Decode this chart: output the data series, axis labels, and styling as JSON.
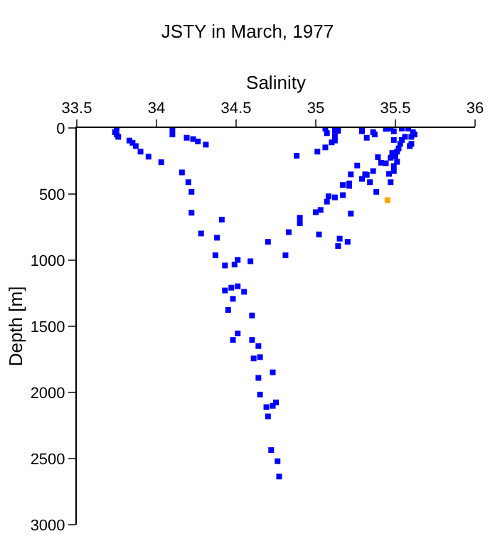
{
  "chart_data": {
    "type": "scatter",
    "title": "JSTY in March, 1977",
    "xlabel": "Salinity",
    "ylabel": "Depth [m]",
    "xlim": [
      33.5,
      36
    ],
    "xticks": [
      33.5,
      34,
      34.5,
      35,
      35.5,
      36
    ],
    "ylim": [
      3000,
      0
    ],
    "yticks": [
      0,
      500,
      1000,
      1500,
      2000,
      2500,
      3000
    ],
    "legend": false,
    "marker": "square",
    "series": [
      {
        "color": "#0000ff",
        "x": [
          33.75,
          33.74,
          33.75,
          33.76,
          34.1,
          34.1,
          34.19,
          34.23,
          34.26,
          34.31,
          33.83,
          33.85,
          33.87,
          33.9,
          33.95,
          34.03,
          34.16,
          34.2,
          34.22,
          34.22,
          34.28,
          34.41,
          34.38,
          34.37,
          34.43,
          34.49,
          34.51,
          34.59,
          34.43,
          34.47,
          34.51,
          34.55,
          34.48,
          34.45,
          34.6,
          34.51,
          35.26,
          35.22,
          35.21,
          35.07,
          35.15,
          35.2,
          35.14,
          35.06,
          35.07,
          35.12,
          35.14,
          35.12,
          35.12,
          35.1,
          35.06,
          35.01,
          34.88,
          35.29,
          35.29,
          35.32,
          35.36,
          35.37,
          35.44,
          35.47,
          35.49,
          35.54,
          35.58,
          35.61,
          35.62,
          35.56,
          35.6,
          35.54,
          35.53,
          35.6,
          35.59,
          35.49,
          35.52,
          35.51,
          35.48,
          35.5,
          35.47,
          35.39,
          35.41,
          35.44,
          35.51,
          35.49,
          35.49,
          35.46,
          35.36,
          35.31,
          35.32,
          35.29,
          35.34,
          35.47,
          35.38,
          35.17,
          35.21,
          35.17,
          35.12,
          35.08,
          35.03,
          35.0,
          34.9,
          34.9,
          35.22,
          34.83,
          35.02,
          34.7,
          34.81,
          34.48,
          34.6,
          34.64,
          34.61,
          34.65,
          34.73,
          34.64,
          34.65,
          34.69,
          34.73,
          34.75,
          34.7,
          34.72,
          34.76,
          34.77
        ],
        "values": [
          4,
          32,
          49,
          67,
          7,
          49,
          74,
          84,
          102,
          126,
          95,
          112,
          137,
          179,
          217,
          259,
          336,
          410,
          483,
          641,
          798,
          693,
          830,
          963,
          1040,
          1033,
          998,
          1008,
          1229,
          1208,
          1197,
          1239,
          1292,
          1376,
          1418,
          1554,
          284,
          351,
          420,
          557,
          837,
          861,
          893,
          4,
          39,
          18,
          21,
          60,
          95,
          109,
          147,
          179,
          210,
          7,
          25,
          74,
          32,
          49,
          7,
          4,
          25,
          4,
          4,
          32,
          49,
          67,
          67,
          91,
          120,
          120,
          137,
          91,
          154,
          179,
          189,
          214,
          225,
          221,
          263,
          267,
          256,
          288,
          326,
          347,
          326,
          351,
          354,
          385,
          410,
          410,
          483,
          431,
          438,
          508,
          525,
          517,
          620,
          637,
          679,
          721,
          648,
          788,
          805,
          861,
          963,
          1603,
          1603,
          1649,
          1743,
          1733,
          1848,
          1890,
          2016,
          2111,
          2101,
          2076,
          2181,
          2436,
          2520,
          2636
        ]
      },
      {
        "color": "#ffa500",
        "x": [
          35.45
        ],
        "values": [
          546
        ]
      }
    ]
  }
}
